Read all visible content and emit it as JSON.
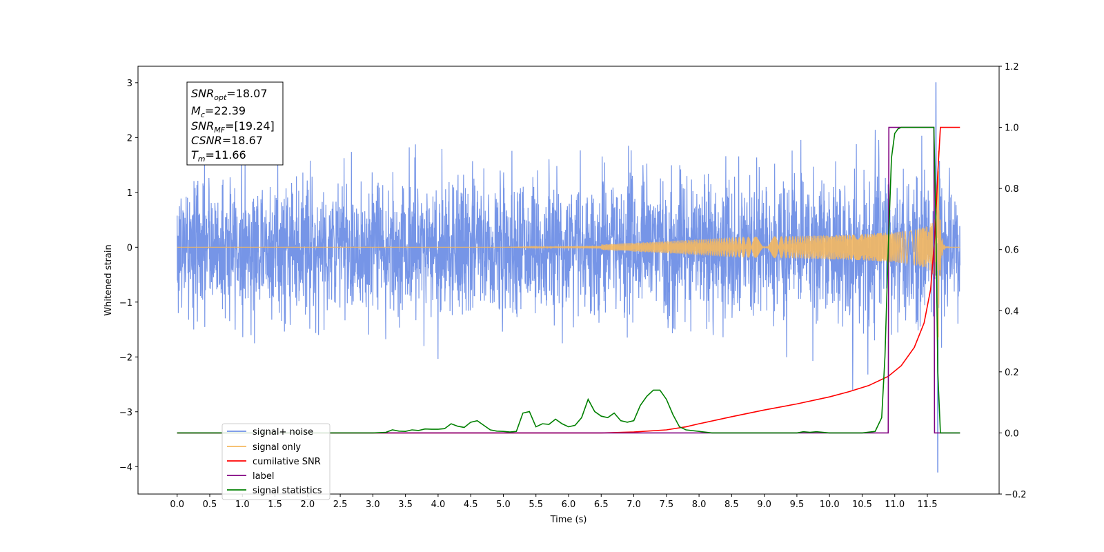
{
  "chart_data": {
    "type": "line",
    "xlabel": "Time (s)",
    "ylabel": "Whitened strain",
    "xlim": [
      -0.6,
      12.6
    ],
    "ylim_left": [
      -4.5,
      3.3
    ],
    "ylim_right": [
      -0.2,
      1.2
    ],
    "x_ticks": [
      "0.0",
      "0.5",
      "1.0",
      "1.5",
      "2.0",
      "2.5",
      "3.0",
      "3.5",
      "4.0",
      "4.5",
      "5.0",
      "5.5",
      "6.0",
      "6.5",
      "7.0",
      "7.5",
      "8.0",
      "8.5",
      "9.0",
      "9.5",
      "10.0",
      "10.5",
      "11.0",
      "11.5"
    ],
    "y_ticks_left": [
      "3",
      "2",
      "1",
      "0",
      "−1",
      "−2",
      "−3",
      "−4"
    ],
    "y_ticks_right": [
      "1.2",
      "1.0",
      "0.8",
      "0.6",
      "0.4",
      "0.2",
      "0.0",
      "−0.2"
    ],
    "annotation": {
      "snr_opt": {
        "base": "SNR",
        "sub": "opt",
        "value": "=18.07"
      },
      "mc": {
        "base": "M",
        "sub": "c",
        "value": "=22.39"
      },
      "snr_mf": {
        "base": "SNR",
        "sub": "MF",
        "value": "=[19.24]"
      },
      "csnr": {
        "base": "CSNR",
        "sub": "",
        "value": "=18.67"
      },
      "tm": {
        "base": "T",
        "sub": "m",
        "value": "=11.66"
      }
    },
    "legend": {
      "placement": "lower-left",
      "entries": [
        "signal+ noise",
        "signal only",
        "cumilative SNR",
        "label",
        "signal statistics"
      ]
    },
    "series": [
      {
        "name": "signal+ noise",
        "axis": "left",
        "color": "#6f8fe6",
        "description_stats": {
          "x_start": 0.0,
          "x_end": 12.0,
          "typical_envelope": [
            -1.3,
            1.3
          ],
          "max": 3.0,
          "min": -4.1,
          "min_at": 11.66
        }
      },
      {
        "name": "signal only",
        "axis": "left",
        "color": "#f5b860",
        "chirp": {
          "x_start": 0.0,
          "x_end": 11.66,
          "peak_amplitude": 2.45,
          "ringdown_end": 12.0
        }
      },
      {
        "name": "cumilative SNR",
        "axis": "right",
        "color": "#ff0000",
        "x": [
          0.0,
          6.0,
          6.5,
          7.0,
          7.5,
          7.8,
          8.0,
          8.5,
          9.0,
          9.5,
          10.0,
          10.3,
          10.6,
          10.9,
          11.1,
          11.3,
          11.45,
          11.55,
          11.62,
          11.66,
          11.7,
          11.8,
          12.0
        ],
        "y": [
          0.0,
          0.0,
          0.0,
          0.003,
          0.01,
          0.02,
          0.03,
          0.053,
          0.075,
          0.095,
          0.118,
          0.135,
          0.155,
          0.185,
          0.22,
          0.28,
          0.36,
          0.47,
          0.66,
          0.85,
          1.0,
          1.0,
          1.0
        ]
      },
      {
        "name": "label",
        "axis": "right",
        "color": "#800080",
        "x": [
          0.0,
          10.9,
          10.91,
          11.6,
          11.61,
          12.0
        ],
        "y": [
          0.0,
          0.0,
          1.0,
          1.0,
          0.0,
          0.0
        ]
      },
      {
        "name": "signal statistics",
        "axis": "right",
        "color": "#008000",
        "x": [
          0.0,
          3.0,
          3.2,
          3.3,
          3.4,
          3.5,
          3.6,
          3.7,
          3.8,
          3.9,
          4.0,
          4.1,
          4.2,
          4.3,
          4.4,
          4.5,
          4.6,
          4.7,
          4.8,
          4.9,
          5.0,
          5.1,
          5.2,
          5.3,
          5.4,
          5.5,
          5.6,
          5.7,
          5.8,
          5.9,
          6.0,
          6.1,
          6.2,
          6.3,
          6.4,
          6.5,
          6.6,
          6.7,
          6.8,
          6.9,
          7.0,
          7.1,
          7.2,
          7.3,
          7.4,
          7.5,
          7.6,
          7.7,
          7.8,
          8.0,
          8.2,
          9.0,
          9.5,
          9.6,
          9.7,
          9.8,
          9.9,
          10.0,
          10.2,
          10.5,
          10.7,
          10.8,
          10.85,
          10.9,
          10.95,
          11.0,
          11.05,
          11.1,
          11.2,
          11.4,
          11.6,
          11.63,
          11.66,
          11.7,
          11.9,
          12.0
        ],
        "y": [
          0.0,
          0.0,
          0.002,
          0.01,
          0.006,
          0.005,
          0.01,
          0.008,
          0.013,
          0.012,
          0.012,
          0.014,
          0.03,
          0.022,
          0.018,
          0.035,
          0.04,
          0.025,
          0.01,
          0.006,
          0.005,
          0.003,
          0.005,
          0.065,
          0.07,
          0.02,
          0.03,
          0.028,
          0.045,
          0.03,
          0.02,
          0.025,
          0.05,
          0.11,
          0.07,
          0.055,
          0.05,
          0.065,
          0.04,
          0.035,
          0.04,
          0.09,
          0.12,
          0.14,
          0.14,
          0.11,
          0.06,
          0.02,
          0.01,
          0.005,
          0.0,
          0.0,
          0.0,
          0.004,
          0.002,
          0.004,
          0.002,
          0.0,
          0.0,
          0.0,
          0.005,
          0.05,
          0.25,
          0.6,
          0.9,
          0.98,
          0.995,
          1.0,
          1.0,
          1.0,
          1.0,
          0.7,
          0.2,
          0.0,
          0.0,
          0.0
        ]
      }
    ]
  }
}
